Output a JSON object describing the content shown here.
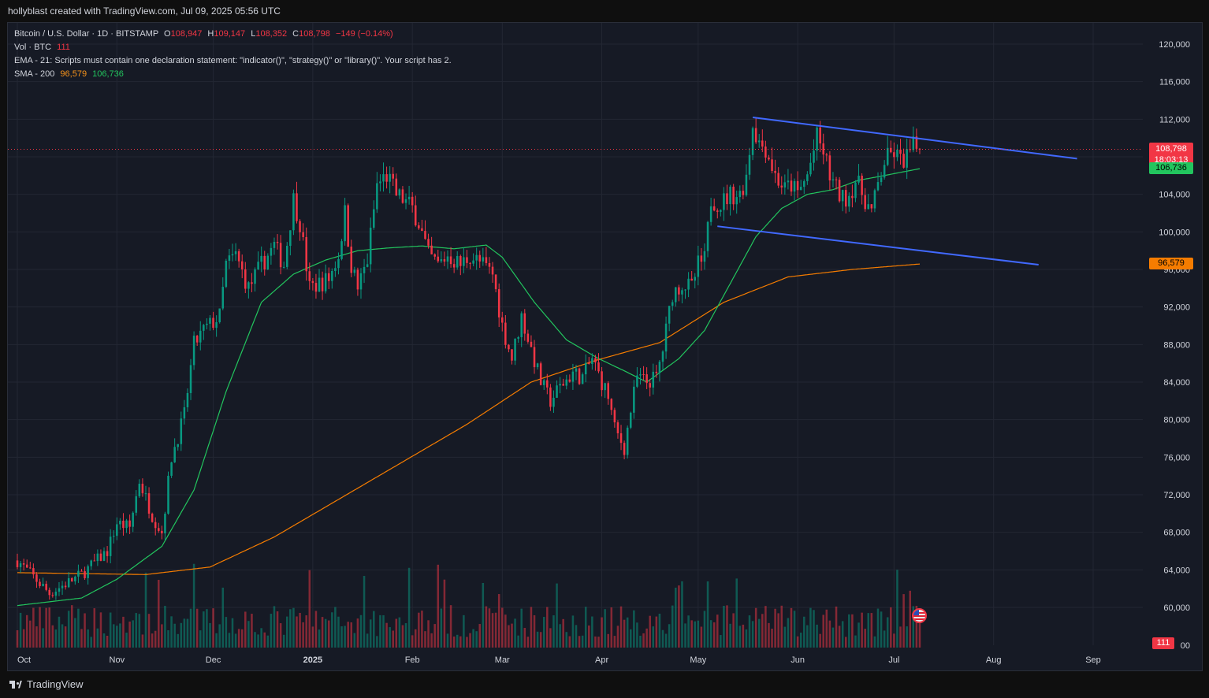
{
  "header": {
    "text": "hollyblast created with TradingView.com, Jul 09, 2025 05:56 UTC"
  },
  "legend": {
    "symbol": "Bitcoin / U.S. Dollar · 1D · BITSTAMP",
    "open_label": "O",
    "open": "108,947",
    "high_label": "H",
    "high": "109,147",
    "low_label": "L",
    "low": "108,352",
    "close_label": "C",
    "close": "108,798",
    "change": "−149 (−0.14%)",
    "vol_label": "Vol · BTC",
    "vol_value": "111",
    "ema_text": "EMA - 21: Scripts must contain one declaration statement: \"indicator()\", \"strategy()\" or \"library()\". Your script has 2.",
    "sma_label": "SMA - 200",
    "sma_value_1": "96,579",
    "sma_value_2": "106,736"
  },
  "price_badges": {
    "last_price": "108,798",
    "countdown": "18:03:13",
    "ema_value": "106,736",
    "sma_value": "96,579",
    "volume_value": "111"
  },
  "footer": {
    "brand": "TradingView"
  },
  "colors": {
    "up": "#089981",
    "down": "#f23645",
    "ema": "#22c55e",
    "sma": "#f57c00",
    "trend": "#4169ff",
    "grid": "#232733",
    "text": "#d1d4dc"
  },
  "chart_data": {
    "type": "candlestick",
    "title": "Bitcoin / U.S. Dollar · 1D · BITSTAMP",
    "y_ticks": [
      60000,
      64000,
      68000,
      72000,
      76000,
      80000,
      84000,
      88000,
      92000,
      96000,
      100000,
      104000,
      108000,
      112000,
      116000,
      120000
    ],
    "y_tick_labels": [
      "60,000",
      "64,000",
      "68,000",
      "72,000",
      "76,000",
      "80,000",
      "84,000",
      "88,000",
      "92,000",
      "96,000",
      "100,000",
      "104,000",
      "108,000",
      "112,000",
      "116,000",
      "120,000"
    ],
    "y_bottom_label": "00",
    "ylim": [
      56000,
      123000
    ],
    "x_labels": [
      "Oct",
      "Nov",
      "Dec",
      "2025",
      "Feb",
      "Mar",
      "Apr",
      "May",
      "Jun",
      "Jul",
      "Aug",
      "Sep"
    ],
    "x_label_days": [
      0,
      31,
      61,
      92,
      123,
      151,
      182,
      212,
      243,
      273,
      304,
      335
    ],
    "total_days": 282,
    "axis_days": 365,
    "close_anchors": [
      [
        0,
        65000
      ],
      [
        10,
        61500
      ],
      [
        20,
        63500
      ],
      [
        28,
        66000
      ],
      [
        31,
        69000
      ],
      [
        35,
        68500
      ],
      [
        38,
        73500
      ],
      [
        42,
        69800
      ],
      [
        45,
        68000
      ],
      [
        48,
        76000
      ],
      [
        52,
        80500
      ],
      [
        55,
        88000
      ],
      [
        58,
        89500
      ],
      [
        63,
        91000
      ],
      [
        65,
        96500
      ],
      [
        68,
        97500
      ],
      [
        72,
        94000
      ],
      [
        76,
        96500
      ],
      [
        80,
        98500
      ],
      [
        83,
        96500
      ],
      [
        86,
        103500
      ],
      [
        88,
        101000
      ],
      [
        91,
        94000
      ],
      [
        94,
        94500
      ],
      [
        97,
        95000
      ],
      [
        100,
        97500
      ],
      [
        102,
        102000
      ],
      [
        104,
        96500
      ],
      [
        106,
        94000
      ],
      [
        109,
        97000
      ],
      [
        112,
        105000
      ],
      [
        115,
        106000
      ],
      [
        118,
        104000
      ],
      [
        120,
        103500
      ],
      [
        123,
        102500
      ],
      [
        125,
        101000
      ],
      [
        128,
        97500
      ],
      [
        131,
        96500
      ],
      [
        134,
        97500
      ],
      [
        138,
        96500
      ],
      [
        141,
        97500
      ],
      [
        145,
        96500
      ],
      [
        148,
        95500
      ],
      [
        151,
        90000
      ],
      [
        154,
        86500
      ],
      [
        157,
        91000
      ],
      [
        160,
        87500
      ],
      [
        163,
        84000
      ],
      [
        166,
        82000
      ],
      [
        169,
        83500
      ],
      [
        173,
        85000
      ],
      [
        176,
        84500
      ],
      [
        179,
        86500
      ],
      [
        182,
        84000
      ],
      [
        184,
        82500
      ],
      [
        186,
        79000
      ],
      [
        189,
        77000
      ],
      [
        191,
        81000
      ],
      [
        193,
        84500
      ],
      [
        196,
        84000
      ],
      [
        199,
        84500
      ],
      [
        201,
        87500
      ],
      [
        204,
        93500
      ],
      [
        207,
        94500
      ],
      [
        210,
        94000
      ],
      [
        212,
        96500
      ],
      [
        214,
        97000
      ],
      [
        216,
        103500
      ],
      [
        219,
        103000
      ],
      [
        222,
        104000
      ],
      [
        225,
        104000
      ],
      [
        227,
        106000
      ],
      [
        229,
        111500
      ],
      [
        231,
        109500
      ],
      [
        233,
        109000
      ],
      [
        236,
        106000
      ],
      [
        239,
        104500
      ],
      [
        241,
        105000
      ],
      [
        243,
        104000
      ],
      [
        246,
        106000
      ],
      [
        249,
        110000
      ],
      [
        251,
        108500
      ],
      [
        253,
        106000
      ],
      [
        255,
        104500
      ],
      [
        257,
        103500
      ],
      [
        259,
        104000
      ],
      [
        261,
        105500
      ],
      [
        264,
        103500
      ],
      [
        266,
        102000
      ],
      [
        268,
        105000
      ],
      [
        270,
        107500
      ],
      [
        273,
        108500
      ],
      [
        275,
        107500
      ],
      [
        277,
        108000
      ],
      [
        279,
        109000
      ],
      [
        281,
        108798
      ]
    ],
    "trend_lines": [
      {
        "name": "upper",
        "from": [
          229,
          112200
        ],
        "to": [
          330,
          107800
        ]
      },
      {
        "name": "lower",
        "from": [
          218,
          100600
        ],
        "to": [
          318,
          96500
        ]
      }
    ],
    "ema_21_anchors": [
      [
        0,
        60200
      ],
      [
        20,
        61000
      ],
      [
        31,
        63000
      ],
      [
        45,
        66500
      ],
      [
        55,
        72500
      ],
      [
        65,
        83000
      ],
      [
        76,
        92500
      ],
      [
        86,
        95500
      ],
      [
        96,
        97000
      ],
      [
        106,
        98000
      ],
      [
        116,
        98300
      ],
      [
        126,
        98500
      ],
      [
        136,
        98200
      ],
      [
        146,
        98600
      ],
      [
        151,
        97300
      ],
      [
        161,
        92500
      ],
      [
        171,
        88500
      ],
      [
        181,
        86500
      ],
      [
        189,
        85200
      ],
      [
        196,
        84000
      ],
      [
        206,
        86500
      ],
      [
        214,
        89500
      ],
      [
        222,
        94500
      ],
      [
        230,
        99500
      ],
      [
        238,
        102500
      ],
      [
        246,
        104000
      ],
      [
        254,
        104500
      ],
      [
        262,
        105500
      ],
      [
        270,
        106000
      ],
      [
        281,
        106736
      ]
    ],
    "sma_200_anchors": [
      [
        0,
        63700
      ],
      [
        40,
        63500
      ],
      [
        60,
        64300
      ],
      [
        80,
        67500
      ],
      [
        100,
        71500
      ],
      [
        120,
        75500
      ],
      [
        140,
        79500
      ],
      [
        160,
        84000
      ],
      [
        180,
        86300
      ],
      [
        200,
        88200
      ],
      [
        220,
        92500
      ],
      [
        240,
        95200
      ],
      [
        260,
        96000
      ],
      [
        281,
        96579
      ]
    ],
    "volume_scale_max": 100
  }
}
